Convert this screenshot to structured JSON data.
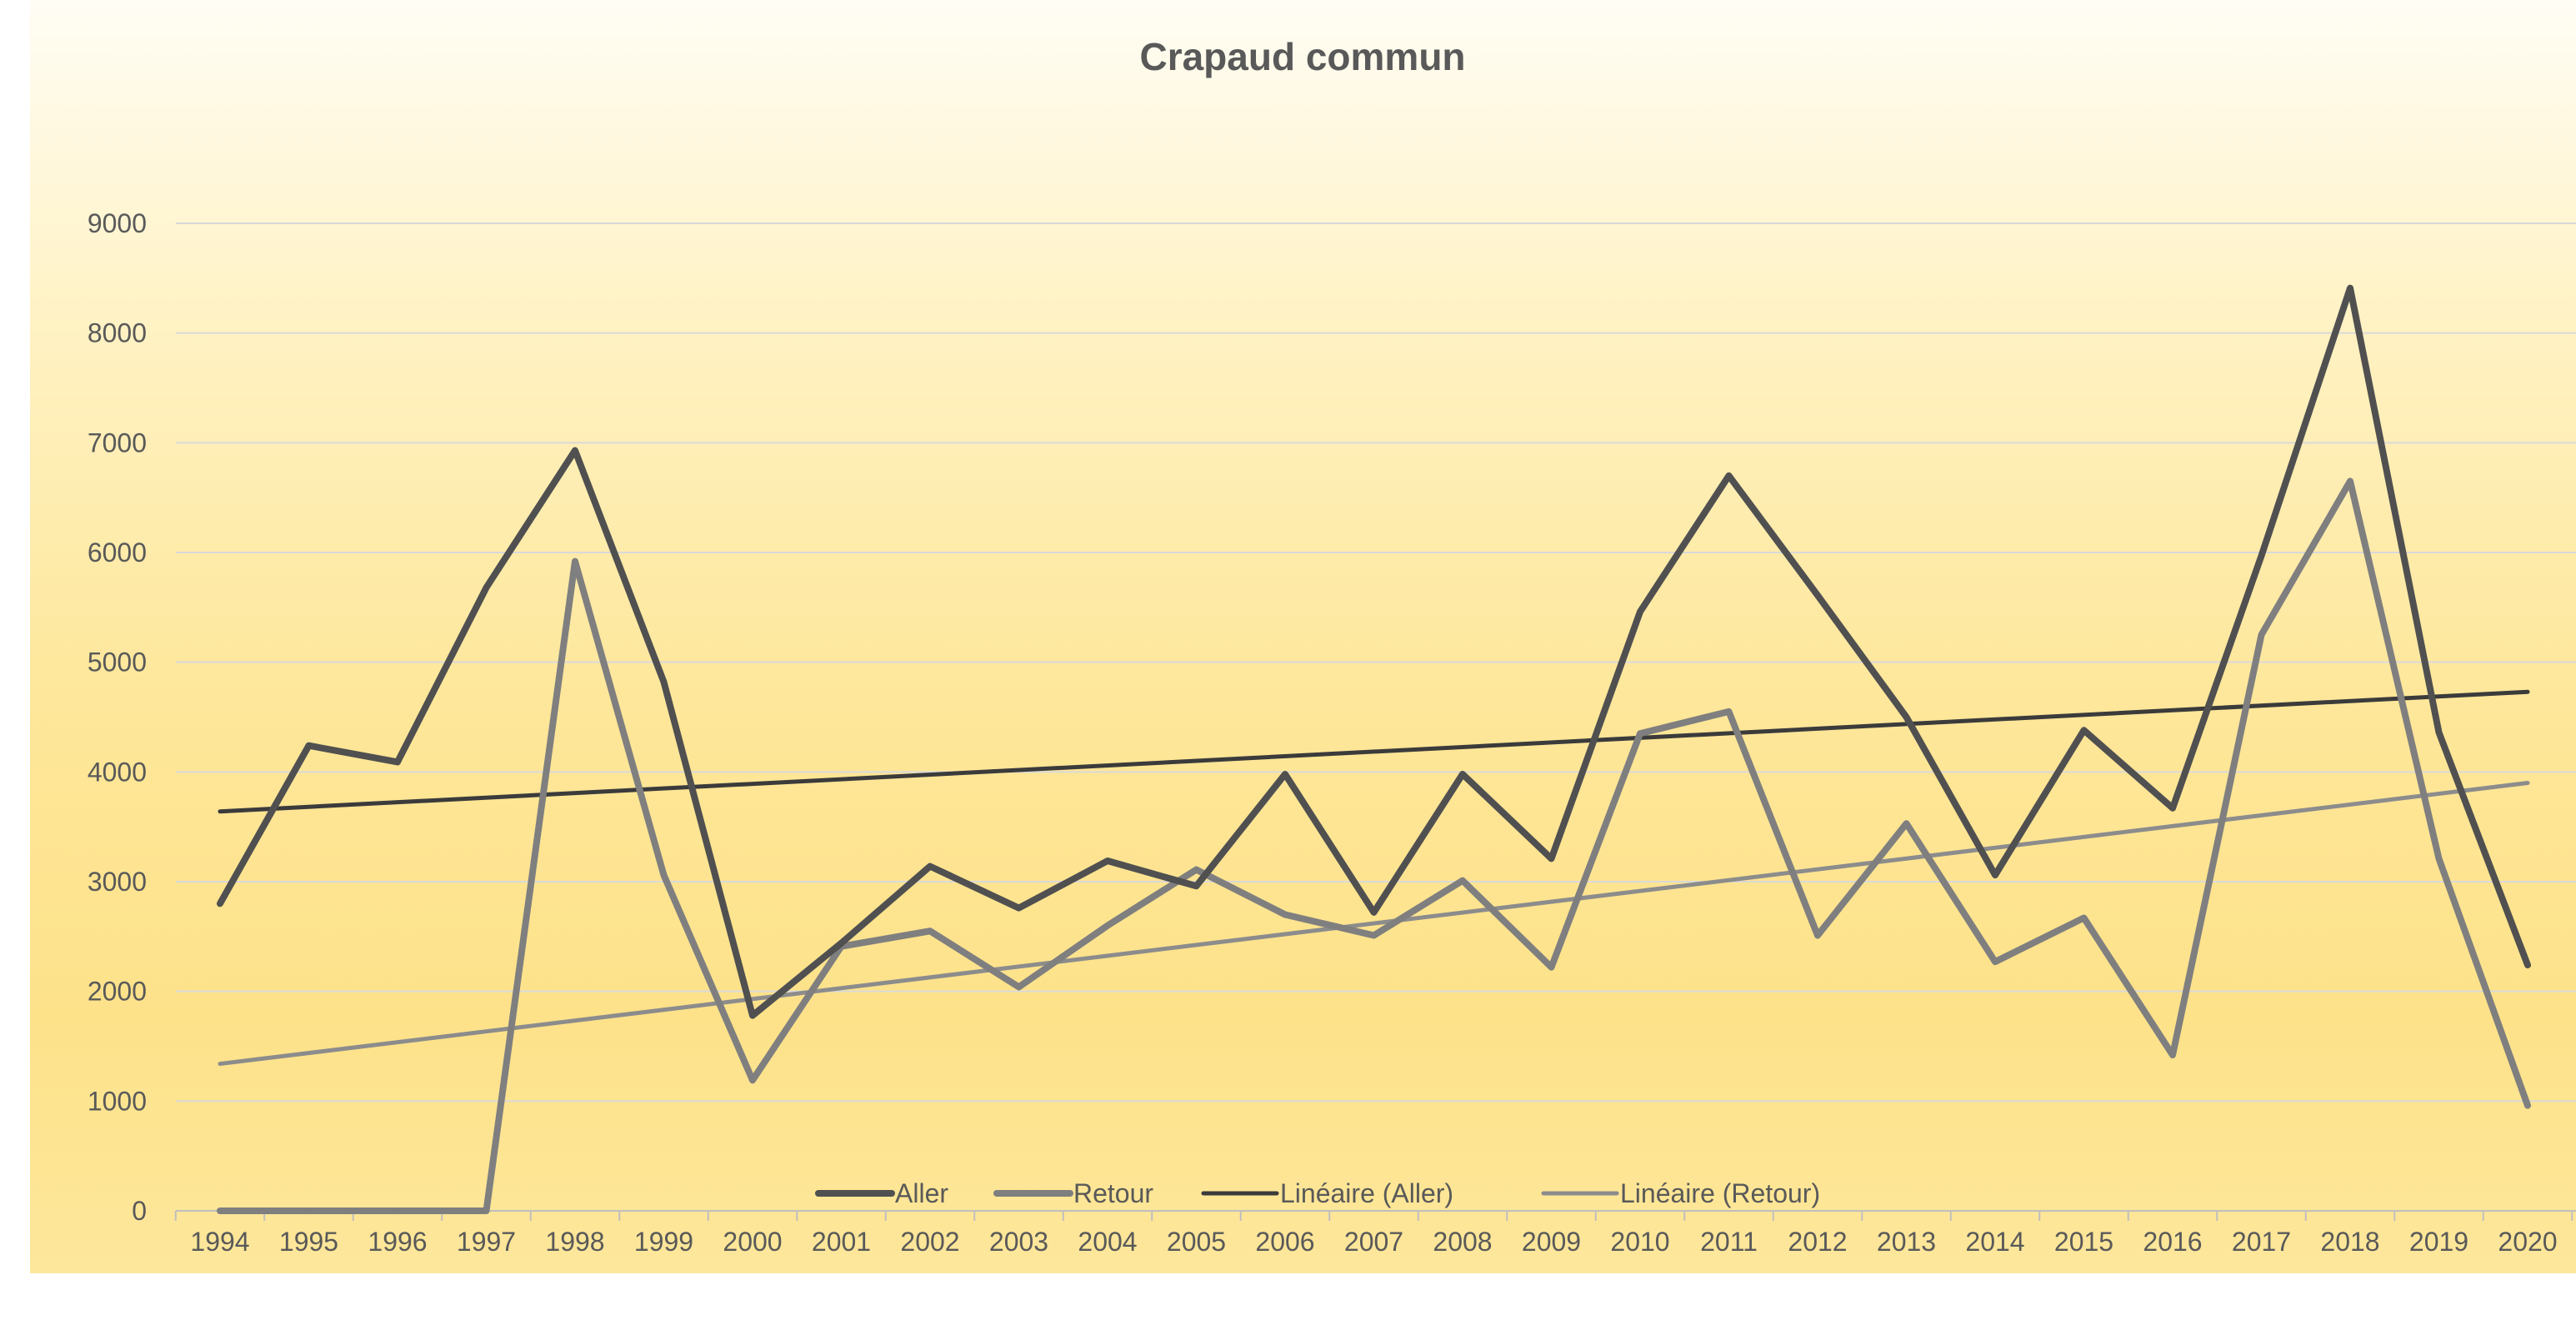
{
  "chart_data": {
    "type": "line",
    "title": "Crapaud commun",
    "xlabel": "",
    "ylabel": "",
    "ylim": [
      0,
      9000
    ],
    "yticks": [
      0,
      1000,
      2000,
      3000,
      4000,
      5000,
      6000,
      7000,
      8000,
      9000
    ],
    "grid": true,
    "legend_position": "bottom",
    "categories": [
      "1994",
      "1995",
      "1996",
      "1997",
      "1998",
      "1999",
      "2000",
      "2001",
      "2002",
      "2003",
      "2004",
      "2005",
      "2006",
      "2007",
      "2008",
      "2009",
      "2010",
      "2011",
      "2012",
      "2013",
      "2014",
      "2015",
      "2016",
      "2017",
      "2018",
      "2019",
      "2020"
    ],
    "series": [
      {
        "name": "Aller",
        "color": "#505050",
        "values": [
          2800,
          4240,
          4090,
          5680,
          6930,
          4820,
          1780,
          2440,
          3140,
          2760,
          3190,
          2960,
          3980,
          2720,
          3980,
          3210,
          5460,
          6700,
          5610,
          4500,
          3060,
          4380,
          3670,
          5970,
          8410,
          4360,
          2240
        ]
      },
      {
        "name": "Retour",
        "color": "#7f7f7f",
        "values": [
          0,
          0,
          0,
          0,
          5920,
          3060,
          1190,
          2410,
          2550,
          2040,
          2600,
          3110,
          2700,
          2510,
          3010,
          2220,
          4350,
          4550,
          2510,
          3530,
          2270,
          2670,
          1420,
          5250,
          6650,
          3210,
          960
        ]
      }
    ],
    "trendlines": [
      {
        "name": "Linéaire (Aller)",
        "color": "#3b3b3b",
        "start": 3640,
        "end": 4730
      },
      {
        "name": "Linéaire (Retour)",
        "color": "#8c8c8c",
        "start": 1340,
        "end": 3900
      }
    ]
  }
}
